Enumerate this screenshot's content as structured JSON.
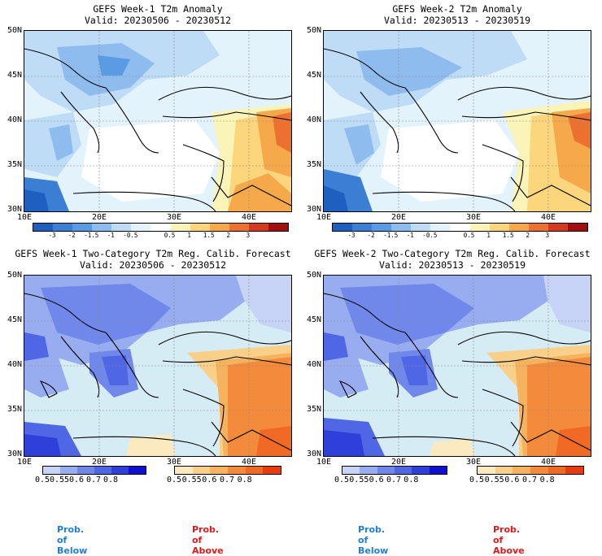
{
  "panels": [
    {
      "title": "GEFS Week-1 T2m Anomaly",
      "valid": "Valid: 20230506 - 20230512"
    },
    {
      "title": "GEFS Week-2 T2m Anomaly",
      "valid": "Valid: 20230513 - 20230519"
    },
    {
      "title": "GEFS Week-1 Two-Category T2m Reg. Calib. Forecast",
      "valid": "Valid: 20230506 - 20230512"
    },
    {
      "title": "GEFS Week-2 Two-Category T2m Reg. Calib. Forecast",
      "valid": "Valid: 20230513 - 20230519"
    }
  ],
  "axes": {
    "lat_labels": [
      "50N",
      "45N",
      "40N",
      "35N",
      "30N"
    ],
    "lon_labels": [
      "10E",
      "20E",
      "30E",
      "40E"
    ]
  },
  "anomaly_colorbar": {
    "ticks": [
      "-3",
      "-2",
      "-1.5",
      "-1",
      "-0.5",
      "0.5",
      "1",
      "1.5",
      "2",
      "3"
    ],
    "colors": [
      "#1f5fbf",
      "#3b7fd4",
      "#5b9be3",
      "#8fbcee",
      "#bfdcf6",
      "#e3f3fb",
      "#ffffff",
      "#fbf4b8",
      "#fbd67d",
      "#f5a94a",
      "#ec7030",
      "#d43a20",
      "#a01010"
    ]
  },
  "prob_colorbars": {
    "below": {
      "ticks": [
        "0.5",
        "0.55",
        "0.6",
        "0.7",
        "0.8"
      ],
      "colors": [
        "#c7d3f7",
        "#98acf0",
        "#6f88ea",
        "#4f67e4",
        "#2f3fd9",
        "#1010d0"
      ]
    },
    "above": {
      "ticks": [
        "0.5",
        "0.55",
        "0.6",
        "0.7",
        "0.8"
      ],
      "colors": [
        "#fbeac0",
        "#f9d08a",
        "#f6b35f",
        "#f38a3c",
        "#f06a25",
        "#ea3a10"
      ]
    }
  },
  "legend": {
    "below": "Prob. of Below",
    "above": "Prob. of Above",
    "below_color": "#1f7ee0",
    "above_color": "#e21a1a"
  }
}
